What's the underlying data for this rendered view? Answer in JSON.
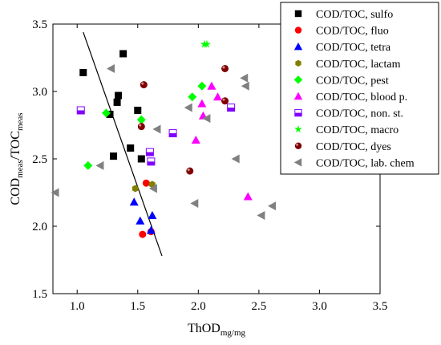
{
  "chart_data": {
    "type": "scatter",
    "xlabel": "ThOD",
    "xlabel_sub": "mg/mg",
    "ylabel_parts": [
      {
        "text": "COD",
        "sub": false
      },
      {
        "text": "meas",
        "sub": true
      },
      {
        "text": "/TOC",
        "sub": false
      },
      {
        "text": "meas",
        "sub": true
      }
    ],
    "xlim": [
      0.8,
      3.5
    ],
    "ylim": [
      1.5,
      3.5
    ],
    "xticks": [
      "1.0",
      "1.5",
      "2.0",
      "2.5",
      "3.0",
      "3.5"
    ],
    "yticks": [
      "1.5",
      "2.0",
      "2.5",
      "3.0",
      "3.5"
    ],
    "grid": false,
    "legend_position": "top-right",
    "trend_line": {
      "x": [
        1.05,
        1.7
      ],
      "y": [
        3.44,
        1.78
      ]
    },
    "series": [
      {
        "name": "COD/TOC, sulfo",
        "marker": "square",
        "color": "#000000",
        "points": [
          [
            1.05,
            3.14
          ],
          [
            1.27,
            2.83
          ],
          [
            1.33,
            2.92
          ],
          [
            1.34,
            2.97
          ],
          [
            1.38,
            3.28
          ],
          [
            1.44,
            2.58
          ],
          [
            1.5,
            2.86
          ],
          [
            1.53,
            2.5
          ],
          [
            1.3,
            2.52
          ]
        ]
      },
      {
        "name": "COD/TOC, fluo",
        "marker": "circle",
        "color": "#ff0000",
        "points": [
          [
            1.57,
            2.32
          ],
          [
            1.54,
            1.94
          ],
          [
            1.61,
            1.96
          ]
        ]
      },
      {
        "name": "COD/TOC, tetra",
        "marker": "triangle",
        "color": "#0000ff",
        "points": [
          [
            1.47,
            2.18
          ],
          [
            1.52,
            2.04
          ],
          [
            1.62,
            2.08
          ],
          [
            1.61,
            1.97
          ]
        ]
      },
      {
        "name": "COD/TOC, lactam",
        "marker": "hexagon",
        "color": "#808000",
        "points": [
          [
            1.48,
            2.28
          ],
          [
            1.62,
            2.31
          ]
        ]
      },
      {
        "name": "COD/TOC, pest",
        "marker": "diamond",
        "color": "#00ff00",
        "points": [
          [
            1.09,
            2.45
          ],
          [
            1.24,
            2.84
          ],
          [
            1.53,
            2.79
          ],
          [
            1.95,
            2.96
          ],
          [
            2.03,
            3.04
          ]
        ]
      },
      {
        "name": "COD/TOC, blood p.",
        "marker": "triangle",
        "color": "#ff00ff",
        "points": [
          [
            1.98,
            2.64
          ],
          [
            2.03,
            2.91
          ],
          [
            2.04,
            2.82
          ],
          [
            2.11,
            3.04
          ],
          [
            2.16,
            2.96
          ],
          [
            2.41,
            2.22
          ]
        ]
      },
      {
        "name": "COD/TOC, non. st.",
        "marker": "half-square",
        "color": "#8000ff",
        "points": [
          [
            1.03,
            2.86
          ],
          [
            1.6,
            2.55
          ],
          [
            1.61,
            2.48
          ],
          [
            1.79,
            2.69
          ],
          [
            2.27,
            2.88
          ]
        ]
      },
      {
        "name": "COD/TOC, macro",
        "marker": "star",
        "color": "#00ff00",
        "points": [
          [
            2.05,
            3.35
          ],
          [
            2.07,
            3.35
          ]
        ]
      },
      {
        "name": "COD/TOC, dyes",
        "marker": "shaded-circle",
        "color": "#800000",
        "points": [
          [
            1.53,
            2.74
          ],
          [
            1.55,
            3.05
          ],
          [
            1.93,
            2.41
          ],
          [
            2.22,
            3.17
          ],
          [
            2.22,
            2.93
          ]
        ]
      },
      {
        "name": "COD/TOC, lab. chem",
        "marker": "left-triangle",
        "color": "#808080",
        "points": [
          [
            0.82,
            2.25
          ],
          [
            1.19,
            2.45
          ],
          [
            1.28,
            3.17
          ],
          [
            1.63,
            2.28
          ],
          [
            1.66,
            2.72
          ],
          [
            1.92,
            2.88
          ],
          [
            1.97,
            2.17
          ],
          [
            2.07,
            2.8
          ],
          [
            2.38,
            3.1
          ],
          [
            2.39,
            3.04
          ],
          [
            2.31,
            2.5
          ],
          [
            2.52,
            2.08
          ],
          [
            2.61,
            2.15
          ]
        ]
      }
    ]
  }
}
